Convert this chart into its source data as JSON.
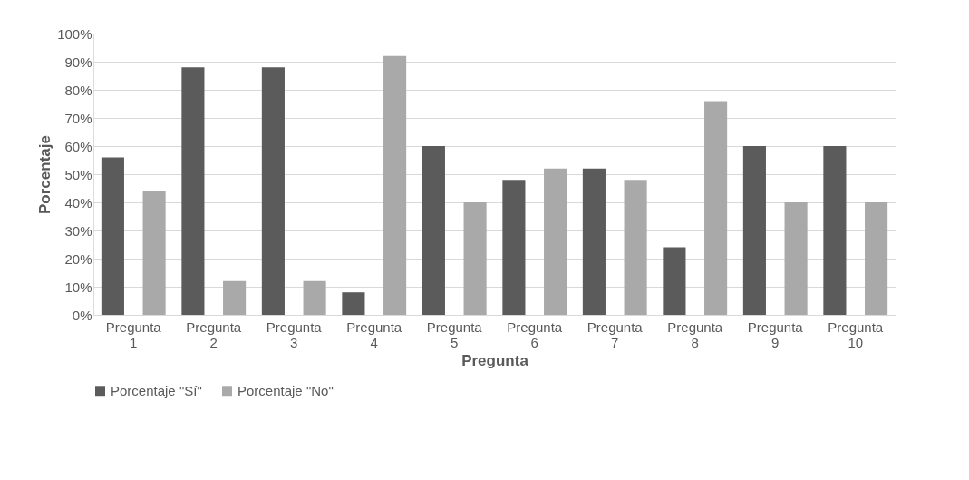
{
  "chart_data": {
    "type": "bar",
    "xlabel": "Pregunta",
    "ylabel": "Porcentaje",
    "categories": [
      "Pregunta 1",
      "Pregunta 2",
      "Pregunta 3",
      "Pregunta 4",
      "Pregunta 5",
      "Pregunta 6",
      "Pregunta 7",
      "Pregunta 8",
      "Pregunta 9",
      "Pregunta 10"
    ],
    "series": [
      {
        "name": "Porcentaje \"Sí\"",
        "color": "#5b5b5b",
        "values": [
          56,
          88,
          88,
          8,
          60,
          48,
          52,
          24,
          60,
          60
        ]
      },
      {
        "name": "Porcentaje \"No\"",
        "color": "#a9a9a9",
        "values": [
          44,
          12,
          12,
          92,
          40,
          52,
          48,
          76,
          40,
          40
        ]
      }
    ],
    "ylim": [
      0,
      100
    ],
    "yticks": [
      {
        "value": 0,
        "label": "0%"
      },
      {
        "value": 10,
        "label": "10%"
      },
      {
        "value": 20,
        "label": "20%"
      },
      {
        "value": 30,
        "label": "30%"
      },
      {
        "value": 40,
        "label": "40%"
      },
      {
        "value": 50,
        "label": "50%"
      },
      {
        "value": 60,
        "label": "60%"
      },
      {
        "value": 70,
        "label": "70%"
      },
      {
        "value": 80,
        "label": "80%"
      },
      {
        "value": 90,
        "label": "90%"
      },
      {
        "value": 100,
        "label": "100%"
      }
    ],
    "grid": "y",
    "legend": "bottom"
  }
}
